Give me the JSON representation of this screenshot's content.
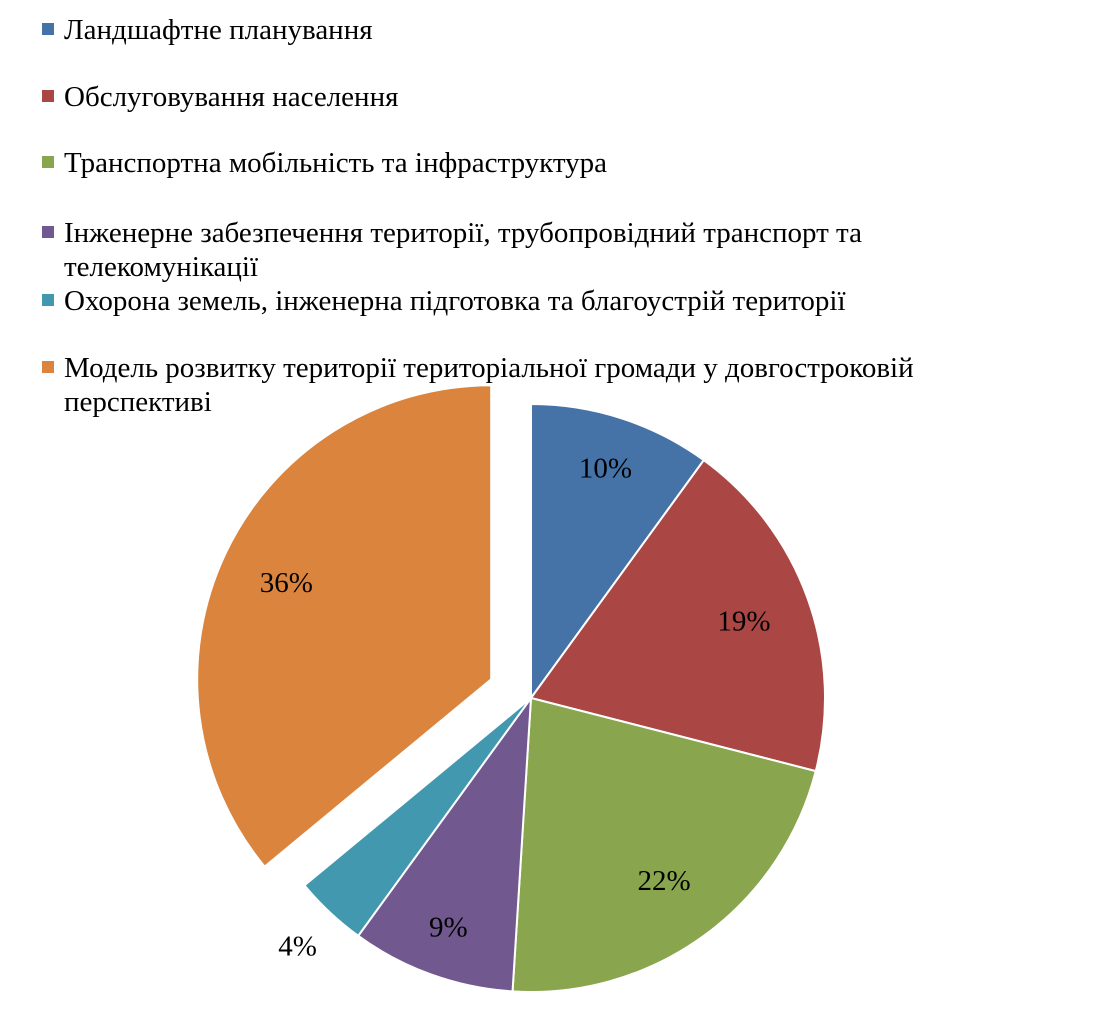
{
  "chart_data": {
    "type": "pie",
    "start_angle_deg": 0,
    "direction": "clockwise",
    "categories": [
      "Ландшафтне планування",
      "Обслуговування населення",
      "Транспортна мобільність та інфраструктура",
      "Інженерне забезпечення території, трубопровідний транспорт та телекомунікації",
      "Охорона земель, інженерна підготовка та благоустрій території",
      "Модель розвитку території територіальної громади у довгостроковій перспективі"
    ],
    "values": [
      10,
      19,
      22,
      9,
      4,
      36
    ],
    "data_labels": [
      "10%",
      "19%",
      "22%",
      "9%",
      "4%",
      "36%"
    ],
    "colors": [
      "#4572A7",
      "#AA4643",
      "#89A54E",
      "#71588F",
      "#4198AF",
      "#DB843D"
    ],
    "exploded": [
      false,
      false,
      false,
      false,
      false,
      true
    ],
    "legend_position": "top",
    "title": ""
  }
}
